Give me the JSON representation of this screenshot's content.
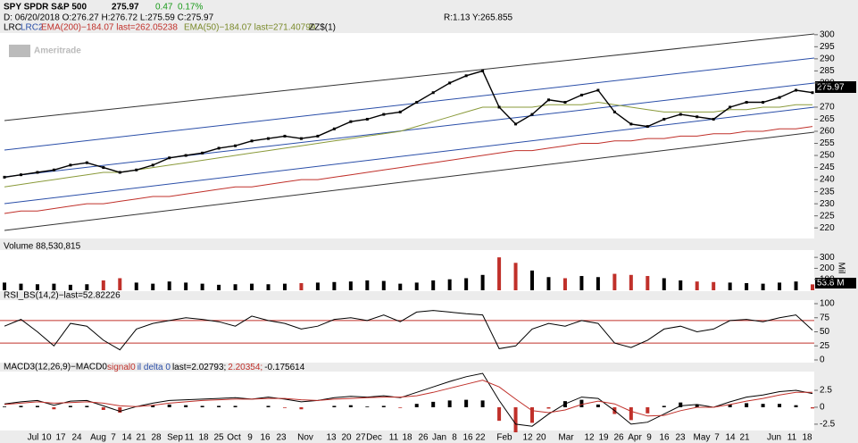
{
  "chart_data": [
    {
      "type": "line",
      "title": "SPY SPDR S&P 500",
      "price": "275.97",
      "change": "0.47",
      "change_pct": "0.17%",
      "info": "D: 06/20/2018 O:276.27 H:276.72 L:275.59 C:275.97",
      "info2": "R:1.13 Y:265.855",
      "studies": [
        "LRC",
        "LRC2",
        "EMA(200)−184.07 last=262.05238",
        "EMA(50)−184.07 last=271.40799",
        "ZZ$(1)"
      ],
      "watermark": "Ameritrade",
      "last_label": "275.97",
      "ylim": [
        216,
        304
      ],
      "yticks": [
        300,
        295,
        290,
        285,
        280,
        270,
        265,
        260,
        255,
        250,
        245,
        240,
        235,
        230,
        225,
        220
      ],
      "series": [
        {
          "color": "#000000",
          "values": [
            241,
            242,
            243,
            244,
            246,
            247,
            245,
            243,
            244,
            246,
            249,
            250,
            251,
            253,
            254,
            256,
            257,
            258,
            257,
            258,
            261,
            264,
            265,
            267,
            268,
            272,
            276,
            280,
            283,
            285,
            270,
            263,
            267,
            273,
            272,
            275,
            277,
            268,
            263,
            262,
            265,
            267,
            266,
            265,
            270,
            272,
            272,
            274,
            277,
            276
          ]
        },
        {
          "color": "#8a9a3a",
          "values": [
            237,
            238,
            239,
            240,
            241,
            242,
            243,
            243,
            244,
            245,
            246,
            247,
            248,
            249,
            250,
            251,
            252,
            253,
            254,
            255,
            256,
            257,
            258,
            259,
            260,
            262,
            264,
            266,
            268,
            270,
            270,
            270,
            270,
            271,
            271,
            271,
            272,
            271,
            270,
            269,
            268,
            268,
            268,
            268,
            269,
            269,
            270,
            270,
            271,
            271
          ]
        },
        {
          "color": "#c0302a",
          "values": [
            226,
            227,
            227,
            228,
            229,
            230,
            230,
            231,
            232,
            233,
            233,
            234,
            235,
            236,
            237,
            237,
            238,
            239,
            240,
            240,
            241,
            242,
            243,
            244,
            245,
            246,
            247,
            248,
            249,
            250,
            251,
            252,
            252,
            253,
            254,
            255,
            255,
            256,
            256,
            257,
            257,
            258,
            258,
            259,
            259,
            260,
            260,
            261,
            261,
            262
          ]
        }
      ]
    },
    {
      "type": "bar",
      "title": "Volume 88,530,815",
      "unit": "Mil",
      "last_label": "53.8 M",
      "up_color": "#000000",
      "down_color": "#c0302a",
      "ylim": [
        0,
        350
      ],
      "yticks": [
        100,
        200,
        300
      ],
      "values": [
        70,
        60,
        55,
        60,
        50,
        55,
        90,
        110,
        70,
        60,
        80,
        70,
        60,
        50,
        55,
        60,
        55,
        60,
        65,
        70,
        75,
        80,
        90,
        85,
        60,
        70,
        90,
        100,
        110,
        140,
        300,
        250,
        180,
        120,
        110,
        130,
        120,
        150,
        140,
        130,
        110,
        90,
        80,
        75,
        70,
        65,
        60,
        70,
        80,
        54
      ]
    },
    {
      "type": "line",
      "title": "RSI_BS(14,2)−last=52.82226",
      "ylim": [
        0,
        100
      ],
      "yticks": [
        0,
        25,
        50,
        75,
        100
      ],
      "bands": [
        30,
        70
      ],
      "color": "#000000",
      "band_color": "#c0302a",
      "values": [
        60,
        72,
        50,
        25,
        65,
        60,
        35,
        18,
        55,
        65,
        70,
        75,
        72,
        68,
        60,
        78,
        70,
        65,
        55,
        60,
        72,
        75,
        70,
        80,
        68,
        85,
        88,
        85,
        82,
        80,
        20,
        25,
        55,
        65,
        60,
        70,
        65,
        30,
        22,
        35,
        55,
        60,
        50,
        55,
        70,
        72,
        68,
        75,
        80,
        53
      ]
    },
    {
      "type": "macd",
      "title": "MACD3(12,26,9)−MACD0",
      "title_parts": [
        "signal0",
        "il delta 0",
        "last=2.02793;",
        "2.20354;",
        "-0.175614"
      ],
      "ylim": [
        -3.3,
        5.4
      ],
      "yticks": [
        2.5,
        0,
        -2.5
      ],
      "xtick_labels": [
        "Jul",
        "10",
        "17",
        "24",
        "Aug",
        "7",
        "14",
        "21",
        "28",
        "Sep",
        "11",
        "18",
        "25",
        "Oct",
        "9",
        "16",
        "23",
        "Nov",
        "13",
        "20",
        "27",
        "Dec",
        "11",
        "18",
        "26",
        "Jan",
        "8",
        "16",
        "22",
        "Feb",
        "12",
        "20",
        "Mar",
        "12",
        "19",
        "26",
        "Apr",
        "9",
        "16",
        "23",
        "May",
        "7",
        "14",
        "21",
        "Jun",
        "11",
        "18"
      ],
      "series": [
        {
          "color": "#000000",
          "values": [
            0.5,
            0.8,
            1,
            0.3,
            0.9,
            1,
            0.2,
            -0.6,
            0.1,
            0.6,
            1,
            1.1,
            1.2,
            1.3,
            1.4,
            1.2,
            1.5,
            1.2,
            0.8,
            1,
            1.4,
            1.6,
            1.5,
            1.7,
            1.4,
            2.2,
            3,
            3.8,
            4.5,
            5,
            1,
            -2.5,
            -2.8,
            -1,
            0.5,
            1.5,
            1.3,
            -0.5,
            -2.5,
            -2.2,
            -1,
            0.2,
            0.4,
            0,
            0.8,
            1.5,
            1.8,
            2.3,
            2.5,
            2.03
          ]
        },
        {
          "color": "#c0302a",
          "values": [
            0.4,
            0.6,
            0.8,
            0.6,
            0.7,
            0.8,
            0.6,
            0.2,
            0.1,
            0.3,
            0.6,
            0.8,
            1,
            1.1,
            1.2,
            1.2,
            1.3,
            1.3,
            1.1,
            1,
            1.2,
            1.3,
            1.4,
            1.5,
            1.5,
            1.7,
            2.2,
            2.8,
            3.4,
            4,
            3,
            1.2,
            -0.5,
            -0.8,
            -0.4,
            0.4,
            0.9,
            0.5,
            -0.6,
            -1.3,
            -1.2,
            -0.5,
            0,
            0,
            0.4,
            0.9,
            1.3,
            1.8,
            2.2,
            2.2
          ]
        }
      ],
      "delta": {
        "up_color": "#000000",
        "down_color": "#c0302a",
        "values": [
          0.1,
          0.2,
          0.2,
          -0.3,
          0.2,
          0.2,
          -0.4,
          -0.8,
          0,
          0.3,
          0.4,
          0.3,
          0.2,
          0.2,
          0.2,
          0,
          0.2,
          -0.1,
          -0.3,
          0,
          0.2,
          0.3,
          0.1,
          0.2,
          -0.1,
          0.5,
          0.8,
          1,
          1.1,
          1,
          -2,
          -3.7,
          -2.3,
          -0.2,
          0.9,
          1.1,
          0.4,
          -1,
          -1.9,
          -0.9,
          0.2,
          0.7,
          0.4,
          0,
          0.4,
          0.6,
          0.5,
          0.5,
          0.3,
          -0.18
        ]
      }
    }
  ]
}
